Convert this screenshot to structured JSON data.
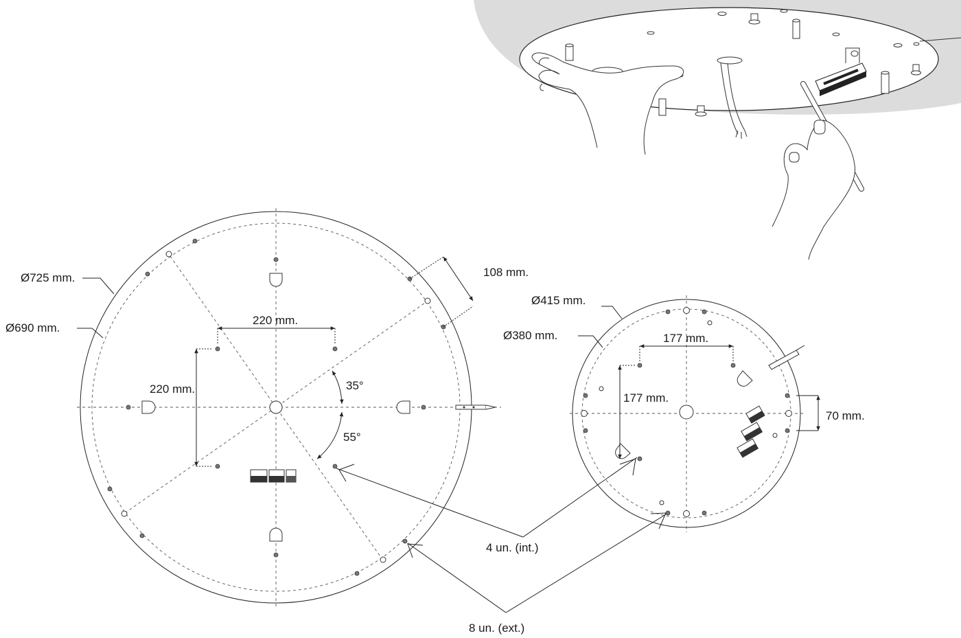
{
  "large_plate": {
    "outer_diameter_label": "Ø725 mm.",
    "inner_diameter_label": "Ø690 mm.",
    "width_label": "220 mm.",
    "height_label": "220 mm.",
    "edge_label": "108 mm.",
    "angle_upper_label": "35°",
    "angle_lower_label": "55°"
  },
  "small_plate": {
    "outer_diameter_label": "Ø415 mm.",
    "inner_diameter_label": "Ø380 mm.",
    "width_label": "177 mm.",
    "height_label": "177 mm.",
    "edge_label": "70 mm."
  },
  "callouts": {
    "internal_label": "4 un. (int.)",
    "external_label": "8 un. (ext.)"
  }
}
